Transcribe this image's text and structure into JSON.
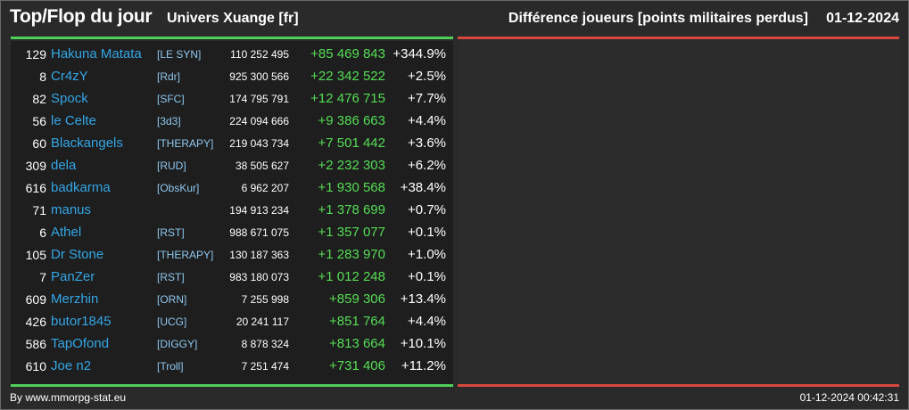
{
  "header": {
    "title": "Top/Flop du jour",
    "universe": "Univers Xuange [fr]",
    "metric": "Différence joueurs [points militaires perdus]",
    "date": "01-12-2024"
  },
  "colors": {
    "accent_green": "#4fd05a",
    "accent_red": "#d9483d",
    "name_blue": "#33a6e6",
    "diff_green": "#55dd55"
  },
  "top": [
    {
      "rank": "129",
      "name": "Hakuna Matata",
      "tag": "[LE SYN]",
      "points": "110 252 495",
      "diff": "+85 469 843",
      "pct": "+344.9%"
    },
    {
      "rank": "8",
      "name": "Cr4zY",
      "tag": "[Rdr]",
      "points": "925 300 566",
      "diff": "+22 342 522",
      "pct": "+2.5%"
    },
    {
      "rank": "82",
      "name": "Spock",
      "tag": "[SFC]",
      "points": "174 795 791",
      "diff": "+12 476 715",
      "pct": "+7.7%"
    },
    {
      "rank": "56",
      "name": "le Celte",
      "tag": "[3d3]",
      "points": "224 094 666",
      "diff": "+9 386 663",
      "pct": "+4.4%"
    },
    {
      "rank": "60",
      "name": "Blackangels",
      "tag": "[THERAPY]",
      "points": "219 043 734",
      "diff": "+7 501 442",
      "pct": "+3.6%"
    },
    {
      "rank": "309",
      "name": "dela",
      "tag": "[RUD]",
      "points": "38 505 627",
      "diff": "+2 232 303",
      "pct": "+6.2%"
    },
    {
      "rank": "616",
      "name": "badkarma",
      "tag": "[ObsKur]",
      "points": "6 962 207",
      "diff": "+1 930 568",
      "pct": "+38.4%"
    },
    {
      "rank": "71",
      "name": "manus",
      "tag": "",
      "points": "194 913 234",
      "diff": "+1 378 699",
      "pct": "+0.7%"
    },
    {
      "rank": "6",
      "name": "Athel",
      "tag": "[RST]",
      "points": "988 671 075",
      "diff": "+1 357 077",
      "pct": "+0.1%"
    },
    {
      "rank": "105",
      "name": "Dr Stone",
      "tag": "[THERAPY]",
      "points": "130 187 363",
      "diff": "+1 283 970",
      "pct": "+1.0%"
    },
    {
      "rank": "7",
      "name": "PanZer",
      "tag": "[RST]",
      "points": "983 180 073",
      "diff": "+1 012 248",
      "pct": "+0.1%"
    },
    {
      "rank": "609",
      "name": "Merzhin",
      "tag": "[ORN]",
      "points": "7 255 998",
      "diff": "+859 306",
      "pct": "+13.4%"
    },
    {
      "rank": "426",
      "name": "butor1845",
      "tag": "[UCG]",
      "points": "20 241 117",
      "diff": "+851 764",
      "pct": "+4.4%"
    },
    {
      "rank": "586",
      "name": "TapOfond",
      "tag": "[DIGGY]",
      "points": "8 878 324",
      "diff": "+813 664",
      "pct": "+10.1%"
    },
    {
      "rank": "610",
      "name": "Joe n2",
      "tag": "[Troll]",
      "points": "7 251 474",
      "diff": "+731 406",
      "pct": "+11.2%"
    }
  ],
  "footer": {
    "source": "By www.mmorpg-stat.eu",
    "timestamp": "01-12-2024 00:42:31"
  }
}
